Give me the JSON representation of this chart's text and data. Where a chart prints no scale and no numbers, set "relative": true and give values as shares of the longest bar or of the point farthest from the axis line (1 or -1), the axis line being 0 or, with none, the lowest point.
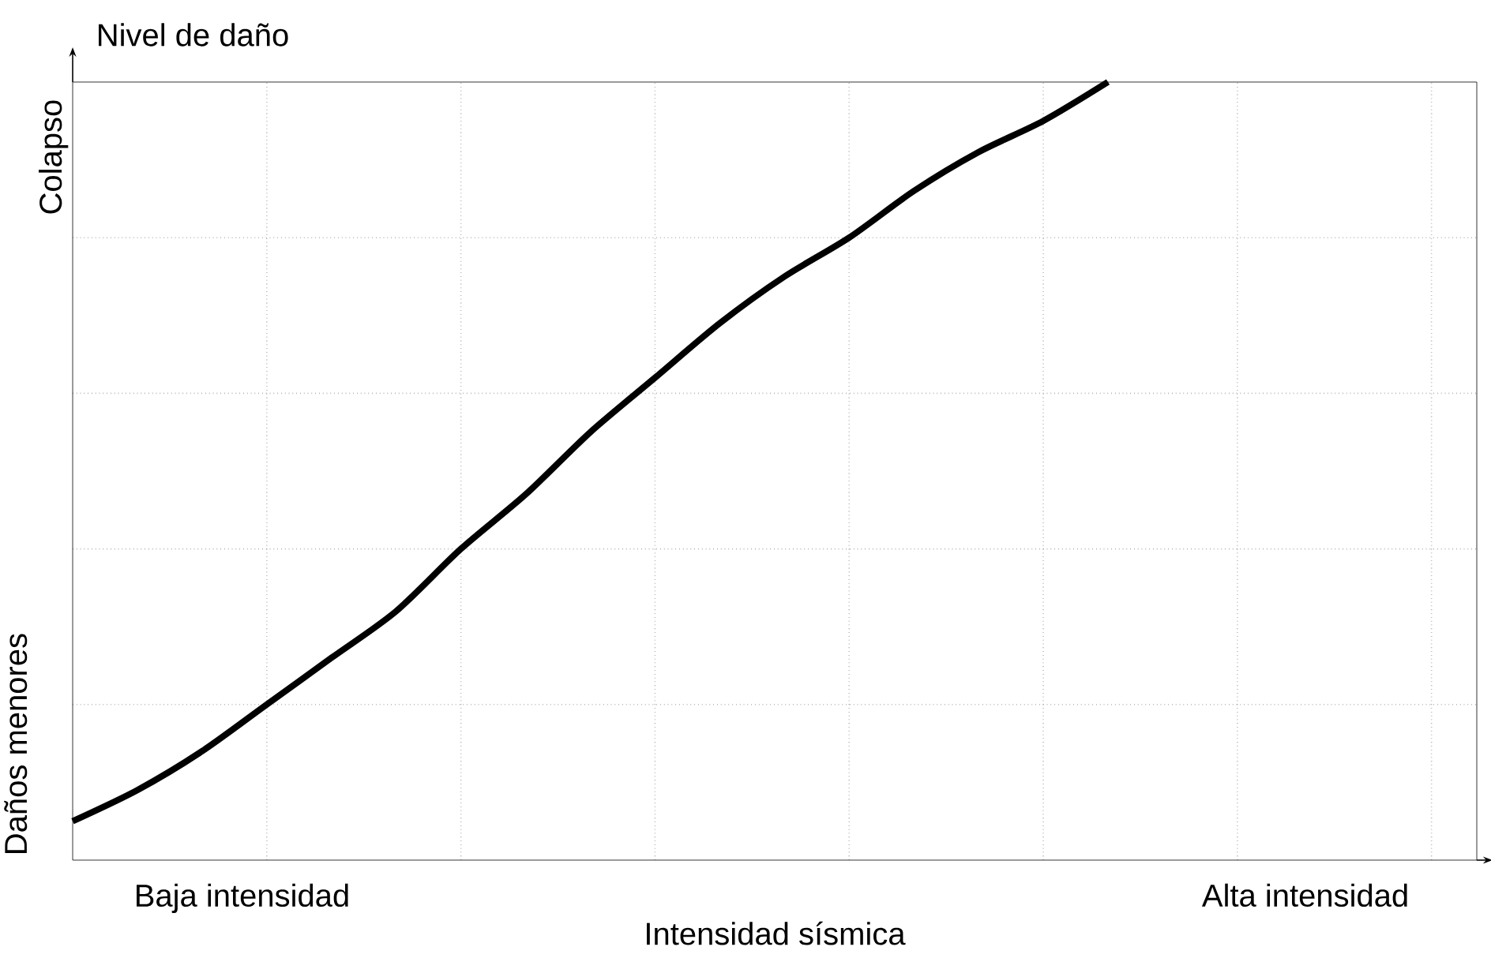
{
  "chart_data": {
    "type": "line",
    "relative": true,
    "xlabel": "Intensidad sísmica",
    "ylabel": "Nivel de daño",
    "categories": [
      null,
      null,
      null,
      null,
      null,
      null,
      null,
      null,
      null,
      null,
      null,
      null,
      null,
      null,
      null,
      null,
      null,
      null,
      null,
      null,
      null,
      null
    ],
    "series": [
      {
        "color": "#000000",
        "values": [
          0.05,
          0.09,
          0.14,
          0.2,
          0.26,
          0.32,
          0.4,
          0.47,
          0.55,
          0.62,
          0.69,
          0.75,
          0.8,
          0.86,
          0.91,
          0.95,
          1,
          null,
          null,
          null,
          null,
          null
        ]
      }
    ],
    "annotations": [
      "Colapso",
      "Daños menores",
      "Baja intensidad",
      "Alta intensidad"
    ],
    "grid": true,
    "marker": "none",
    "line_style": "solid"
  }
}
